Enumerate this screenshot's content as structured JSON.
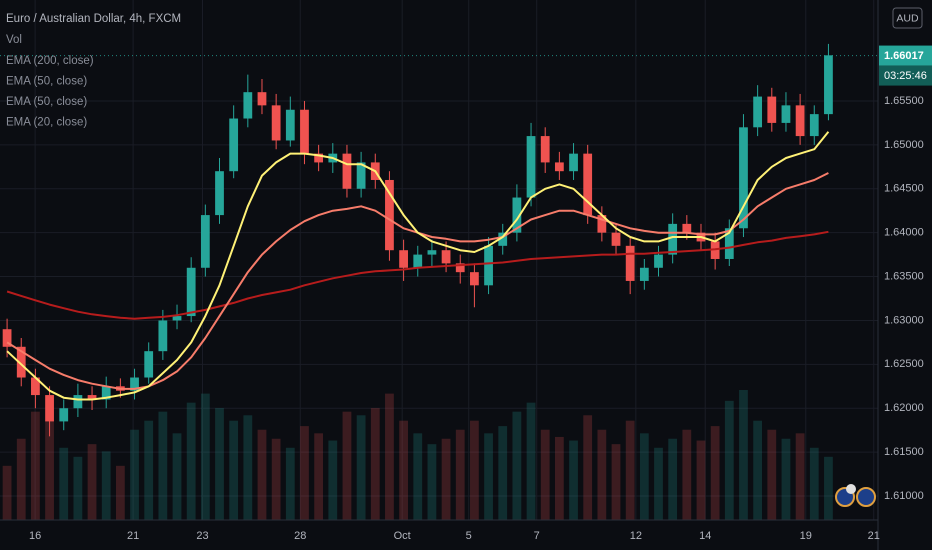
{
  "chart_data": {
    "type": "candlestick",
    "title": "Euro / Australian Dollar, 4h, FXCM",
    "volume_label": "Vol",
    "legend_items": [
      "EMA (200, close)",
      "EMA (50, close)",
      "EMA (50, close)",
      "EMA (20, close)"
    ],
    "currency": "AUD",
    "last_price": 1.66017,
    "countdown": "03:25:46",
    "up_color": "#26a69a",
    "down_color": "#ef5350",
    "open": [
      1.629,
      1.627,
      1.6235,
      1.6215,
      1.6185,
      1.62,
      1.6215,
      1.621,
      1.6225,
      1.622,
      1.6235,
      1.6265,
      1.63,
      1.6305,
      1.636,
      1.642,
      1.647,
      1.653,
      1.656,
      1.6545,
      1.6505,
      1.654,
      1.649,
      1.648,
      1.649,
      1.645,
      1.648,
      1.646,
      1.638,
      1.636,
      1.6375,
      1.638,
      1.6365,
      1.6355,
      1.634,
      1.6385,
      1.64,
      1.644,
      1.651,
      1.648,
      1.647,
      1.649,
      1.642,
      1.64,
      1.6385,
      1.6345,
      1.636,
      1.6375,
      1.641,
      1.64,
      1.639,
      1.637,
      1.6405,
      1.652,
      1.6555,
      1.6525,
      1.6545,
      1.651,
      1.6535
    ],
    "high": [
      1.6302,
      1.628,
      1.6245,
      1.6225,
      1.621,
      1.6228,
      1.6225,
      1.6236,
      1.6234,
      1.6245,
      1.6275,
      1.6312,
      1.6318,
      1.6372,
      1.6432,
      1.6485,
      1.6545,
      1.658,
      1.6575,
      1.6558,
      1.6555,
      1.655,
      1.65,
      1.6502,
      1.65,
      1.6492,
      1.649,
      1.647,
      1.6392,
      1.6385,
      1.6392,
      1.639,
      1.6375,
      1.6365,
      1.6395,
      1.641,
      1.6455,
      1.6525,
      1.652,
      1.6492,
      1.6502,
      1.65,
      1.643,
      1.641,
      1.6395,
      1.637,
      1.6385,
      1.6422,
      1.642,
      1.641,
      1.64,
      1.6415,
      1.6535,
      1.6568,
      1.6565,
      1.656,
      1.6558,
      1.6545,
      1.6615
    ],
    "low": [
      1.6258,
      1.6225,
      1.62,
      1.6168,
      1.6175,
      1.619,
      1.6198,
      1.62,
      1.6212,
      1.621,
      1.6228,
      1.6255,
      1.629,
      1.6298,
      1.635,
      1.641,
      1.6462,
      1.652,
      1.6535,
      1.6495,
      1.6498,
      1.6478,
      1.647,
      1.6468,
      1.644,
      1.644,
      1.645,
      1.6368,
      1.6345,
      1.635,
      1.6362,
      1.6355,
      1.6342,
      1.6315,
      1.633,
      1.6375,
      1.639,
      1.643,
      1.6468,
      1.646,
      1.646,
      1.641,
      1.639,
      1.6375,
      1.633,
      1.6335,
      1.635,
      1.6365,
      1.6392,
      1.638,
      1.6358,
      1.6362,
      1.6395,
      1.651,
      1.6515,
      1.6515,
      1.65,
      1.65,
      1.6528
    ],
    "close": [
      1.627,
      1.6235,
      1.6215,
      1.6185,
      1.62,
      1.6215,
      1.621,
      1.6225,
      1.622,
      1.6235,
      1.6265,
      1.63,
      1.6305,
      1.636,
      1.642,
      1.647,
      1.653,
      1.656,
      1.6545,
      1.6505,
      1.654,
      1.649,
      1.648,
      1.649,
      1.645,
      1.648,
      1.646,
      1.638,
      1.636,
      1.6375,
      1.638,
      1.6365,
      1.6355,
      1.634,
      1.6385,
      1.64,
      1.644,
      1.651,
      1.648,
      1.647,
      1.649,
      1.642,
      1.64,
      1.6385,
      1.6345,
      1.636,
      1.6375,
      1.641,
      1.64,
      1.639,
      1.637,
      1.6405,
      1.652,
      1.6555,
      1.6525,
      1.6545,
      1.651,
      1.6535,
      1.6602
    ],
    "volume": [
      30,
      45,
      60,
      55,
      40,
      35,
      42,
      38,
      30,
      50,
      55,
      60,
      48,
      65,
      70,
      62,
      55,
      58,
      50,
      45,
      40,
      52,
      48,
      44,
      60,
      58,
      62,
      70,
      55,
      48,
      42,
      45,
      50,
      55,
      48,
      52,
      60,
      65,
      50,
      46,
      44,
      58,
      50,
      42,
      55,
      48,
      40,
      45,
      50,
      44,
      52,
      66,
      72,
      55,
      50,
      45,
      48,
      40,
      35
    ],
    "series": [
      {
        "color": "#b71c1c",
        "values": [
          1.6333,
          1.6328,
          1.6323,
          1.6318,
          1.6314,
          1.631,
          1.6307,
          1.6305,
          1.6303,
          1.6302,
          1.6303,
          1.6304,
          1.6306,
          1.6309,
          1.6312,
          1.6316,
          1.632,
          1.6325,
          1.6329,
          1.6332,
          1.6335,
          1.634,
          1.6344,
          1.6348,
          1.6351,
          1.6354,
          1.6356,
          1.6357,
          1.6358,
          1.636,
          1.6361,
          1.6362,
          1.6363,
          1.6364,
          1.6365,
          1.6366,
          1.6368,
          1.637,
          1.6371,
          1.6372,
          1.6373,
          1.6374,
          1.6375,
          1.6375,
          1.6376,
          1.6376,
          1.6377,
          1.6378,
          1.6379,
          1.638,
          1.6381,
          1.6383,
          1.6386,
          1.6389,
          1.6391,
          1.6394,
          1.6396,
          1.6398,
          1.6401
        ]
      },
      {
        "color": "#f77c6a",
        "values": [
          1.6275,
          1.6265,
          1.6255,
          1.6245,
          1.6238,
          1.6232,
          1.6228,
          1.6225,
          1.6222,
          1.6222,
          1.6225,
          1.6232,
          1.6242,
          1.6258,
          1.628,
          1.6305,
          1.633,
          1.6355,
          1.6375,
          1.639,
          1.6403,
          1.6413,
          1.642,
          1.6425,
          1.6427,
          1.643,
          1.6425,
          1.6415,
          1.6405,
          1.64,
          1.6395,
          1.6393,
          1.639,
          1.639,
          1.6392,
          1.6395,
          1.6405,
          1.6415,
          1.642,
          1.6425,
          1.6425,
          1.642,
          1.6415,
          1.641,
          1.6405,
          1.6402,
          1.64,
          1.64,
          1.64,
          1.6398,
          1.6398,
          1.6402,
          1.6415,
          1.643,
          1.644,
          1.645,
          1.6455,
          1.646,
          1.6468
        ]
      },
      {
        "color": "#fff176",
        "values": [
          1.6265,
          1.625,
          1.6235,
          1.622,
          1.6212,
          1.621,
          1.621,
          1.6212,
          1.6215,
          1.6218,
          1.6225,
          1.624,
          1.6255,
          1.6275,
          1.6305,
          1.634,
          1.6385,
          1.643,
          1.6465,
          1.648,
          1.649,
          1.649,
          1.6488,
          1.6485,
          1.6478,
          1.6478,
          1.647,
          1.6445,
          1.642,
          1.64,
          1.639,
          1.6385,
          1.638,
          1.6378,
          1.6385,
          1.6395,
          1.6415,
          1.644,
          1.645,
          1.6455,
          1.645,
          1.6435,
          1.642,
          1.6405,
          1.6395,
          1.639,
          1.639,
          1.6395,
          1.6395,
          1.6395,
          1.639,
          1.64,
          1.643,
          1.646,
          1.6475,
          1.6485,
          1.649,
          1.6495,
          1.6515
        ]
      }
    ],
    "xlim": [
      -0.5,
      61.5
    ],
    "xticks": [
      {
        "value": 1.98,
        "label": "16"
      },
      {
        "value": 8.9,
        "label": "21"
      },
      {
        "value": 13.8,
        "label": "23"
      },
      {
        "value": 20.7,
        "label": "28"
      },
      {
        "value": 27.9,
        "label": "Oct"
      },
      {
        "value": 32.6,
        "label": "5"
      },
      {
        "value": 37.4,
        "label": "7"
      },
      {
        "value": 44.4,
        "label": "12"
      },
      {
        "value": 49.3,
        "label": "14"
      },
      {
        "value": 56.4,
        "label": "19"
      },
      {
        "value": 61.2,
        "label": "21"
      }
    ],
    "ylim": [
      1.60727,
      1.6665
    ],
    "yticks": [
      {
        "value": 1.61,
        "label": "1.61000"
      },
      {
        "value": 1.615,
        "label": "1.61500"
      },
      {
        "value": 1.62,
        "label": "1.62000"
      },
      {
        "value": 1.625,
        "label": "1.62500"
      },
      {
        "value": 1.63,
        "label": "1.63000"
      },
      {
        "value": 1.635,
        "label": "1.63500"
      },
      {
        "value": 1.64,
        "label": "1.64000"
      },
      {
        "value": 1.645,
        "label": "1.64500"
      },
      {
        "value": 1.65,
        "label": "1.65000"
      },
      {
        "value": 1.655,
        "label": "1.65500"
      }
    ],
    "grid": true
  }
}
